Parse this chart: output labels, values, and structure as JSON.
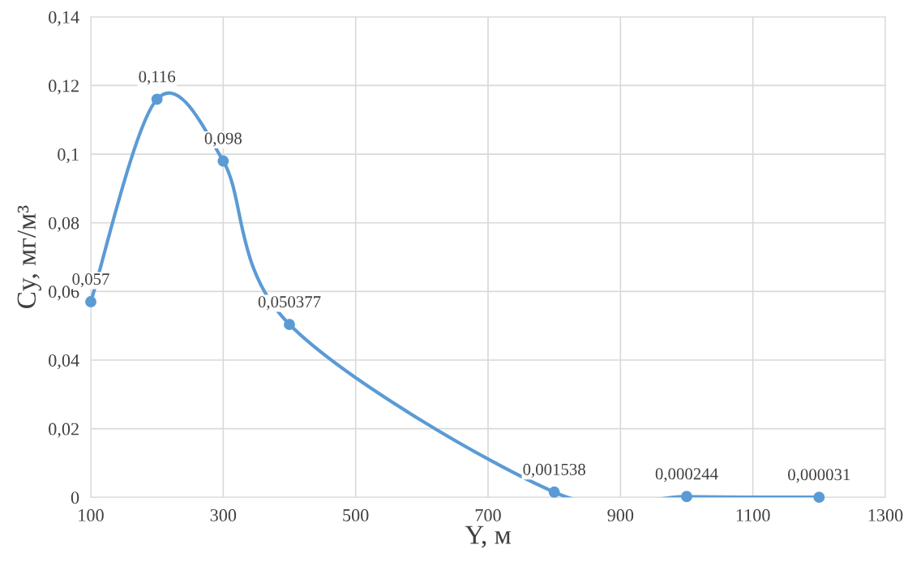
{
  "chart_data": {
    "type": "line",
    "xlabel": "Y, м",
    "ylabel": "Cy, мг/м³",
    "x": [
      100,
      200,
      300,
      400,
      800,
      1000,
      1200
    ],
    "series": [
      {
        "color": "#5b9bd5",
        "values": [
          0.057,
          0.116,
          0.098,
          0.050377,
          0.001538,
          0.000244,
          3.1e-05
        ],
        "value_labels": [
          "0,057",
          "0,116",
          "0,098",
          "0,050377",
          "0,001538",
          "0,000244",
          "0,000031"
        ]
      }
    ],
    "xlim": [
      100,
      1300
    ],
    "xticks": [
      100,
      300,
      500,
      700,
      900,
      1100,
      1300
    ],
    "ylim": [
      0,
      0.14
    ],
    "yticks": [
      {
        "value": 0,
        "label": "0"
      },
      {
        "value": 0.02,
        "label": "0,02"
      },
      {
        "value": 0.04,
        "label": "0,04"
      },
      {
        "value": 0.06,
        "label": "0,06"
      },
      {
        "value": 0.08,
        "label": "0,08"
      },
      {
        "value": 0.1,
        "label": "0,1"
      },
      {
        "value": 0.12,
        "label": "0,12"
      },
      {
        "value": 0.14,
        "label": "0,14"
      }
    ],
    "grid": true,
    "marker": "circle",
    "line_style": "solid",
    "legend": false
  }
}
